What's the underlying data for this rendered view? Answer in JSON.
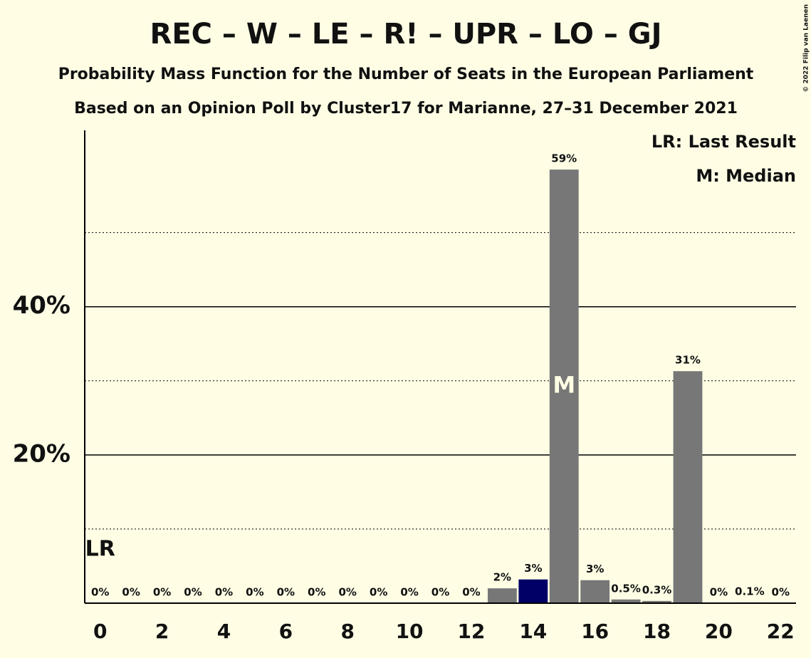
{
  "chart_data": {
    "type": "bar",
    "title": "REC – W – LE – R! – UPR – LO – GJ",
    "subtitle": "Probability Mass Function for the Number of Seats in the European Parliament",
    "subtitle2": "Based on an Opinion Poll by Cluster17 for Marianne, 27–31 December 2021",
    "credit": "© 2022 Filip van Laenen",
    "x": [
      0,
      1,
      2,
      3,
      4,
      5,
      6,
      7,
      8,
      9,
      10,
      11,
      12,
      13,
      14,
      15,
      16,
      17,
      18,
      19,
      20,
      21,
      22
    ],
    "values": [
      0,
      0,
      0,
      0,
      0,
      0,
      0,
      0,
      0,
      0,
      0,
      0,
      0,
      2.0,
      3.2,
      58.5,
      3.1,
      0.5,
      0.3,
      31.3,
      0,
      0.1,
      0
    ],
    "value_labels": [
      "0%",
      "0%",
      "0%",
      "0%",
      "0%",
      "0%",
      "0%",
      "0%",
      "0%",
      "0%",
      "0%",
      "0%",
      "0%",
      "2%",
      "3%",
      "59%",
      "3%",
      "0.5%",
      "0.3%",
      "31%",
      "0%",
      "0.1%",
      "0%"
    ],
    "colors": [
      "#777777",
      "#777777",
      "#777777",
      "#777777",
      "#777777",
      "#777777",
      "#777777",
      "#777777",
      "#777777",
      "#777777",
      "#777777",
      "#777777",
      "#777777",
      "#777777",
      "#000066",
      "#777777",
      "#777777",
      "#777777",
      "#777777",
      "#777777",
      "#777777",
      "#777777",
      "#777777"
    ],
    "xlim": [
      -0.5,
      22.5
    ],
    "xticks": [
      0,
      2,
      4,
      6,
      8,
      10,
      12,
      14,
      16,
      18,
      20,
      22
    ],
    "ylim": [
      0,
      63.8
    ],
    "yticks": [
      {
        "value": 20,
        "label": "20%"
      },
      {
        "value": 40,
        "label": "40%"
      }
    ],
    "minor_yticks": [
      10,
      30,
      50
    ],
    "grid": true,
    "last_result": 0,
    "last_result_label": "LR",
    "median": 15,
    "median_label": "M",
    "legend": [
      "LR: Last Result",
      "M: Median"
    ]
  }
}
